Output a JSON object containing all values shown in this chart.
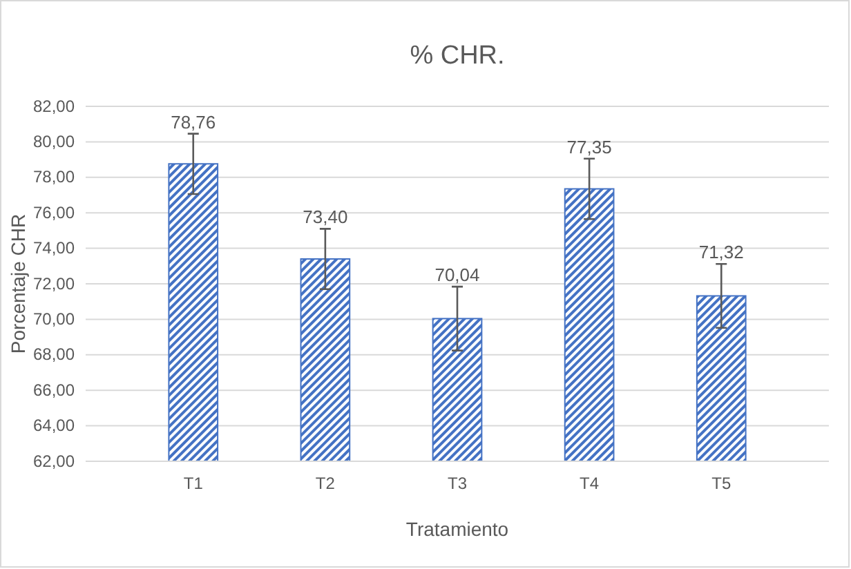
{
  "chart_data": {
    "type": "bar",
    "title": "% CHR.",
    "xlabel": "Tratamiento",
    "ylabel": "Porcentaje CHR",
    "categories": [
      "T1",
      "T2",
      "T3",
      "T4",
      "T5"
    ],
    "values": [
      78.76,
      73.4,
      70.04,
      77.35,
      71.32
    ],
    "value_labels": [
      "78,76",
      "73,40",
      "70,04",
      "77,35",
      "71,32"
    ],
    "errors": [
      1.7,
      1.7,
      1.8,
      1.7,
      1.8
    ],
    "color": "#4472c4",
    "ylim": [
      62,
      82
    ],
    "yticks": [
      {
        "value": 62,
        "label": "62,00"
      },
      {
        "value": 64,
        "label": "64,00"
      },
      {
        "value": 66,
        "label": "66,00"
      },
      {
        "value": 68,
        "label": "68,00"
      },
      {
        "value": 70,
        "label": "70,00"
      },
      {
        "value": 72,
        "label": "72,00"
      },
      {
        "value": 74,
        "label": "74,00"
      },
      {
        "value": 76,
        "label": "76,00"
      },
      {
        "value": 78,
        "label": "78,00"
      },
      {
        "value": 80,
        "label": "80,00"
      },
      {
        "value": 82,
        "label": "82,00"
      }
    ],
    "grid": "y"
  }
}
